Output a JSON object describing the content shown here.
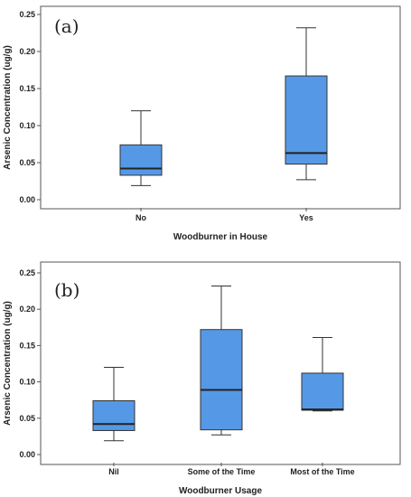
{
  "colors": {
    "box_fill": "#5599e6",
    "box_stroke": "#333333",
    "frame": "#555555"
  },
  "chart_data": [
    {
      "type": "box",
      "panel_label": "(a)",
      "xlabel": "Woodburner in House",
      "ylabel": "Arsenic Concentration (ug/g)",
      "ylim": [
        0,
        0.25
      ],
      "yticks": [
        "0.00",
        "0.05",
        "0.10",
        "0.15",
        "0.20",
        "0.25"
      ],
      "grid": false,
      "categories": [
        "No",
        "Yes"
      ],
      "boxes": [
        {
          "min": 0.019,
          "q1": 0.033,
          "median": 0.042,
          "q3": 0.074,
          "max": 0.12
        },
        {
          "min": 0.027,
          "q1": 0.048,
          "median": 0.063,
          "q3": 0.167,
          "max": 0.232
        }
      ]
    },
    {
      "type": "box",
      "panel_label": "(b)",
      "xlabel": "Woodburner Usage",
      "ylabel": "Arsenic Concentration (ug/g)",
      "ylim": [
        0,
        0.25
      ],
      "yticks": [
        "0.00",
        "0.05",
        "0.10",
        "0.15",
        "0.20",
        "0.25"
      ],
      "grid": false,
      "categories": [
        "Nil",
        "Some of the Time",
        "Most of the Time"
      ],
      "boxes": [
        {
          "min": 0.019,
          "q1": 0.033,
          "median": 0.042,
          "q3": 0.074,
          "max": 0.12
        },
        {
          "min": 0.027,
          "q1": 0.034,
          "median": 0.089,
          "q3": 0.172,
          "max": 0.232
        },
        {
          "min": 0.06,
          "q1": 0.061,
          "median": 0.062,
          "q3": 0.112,
          "max": 0.161
        }
      ]
    }
  ]
}
